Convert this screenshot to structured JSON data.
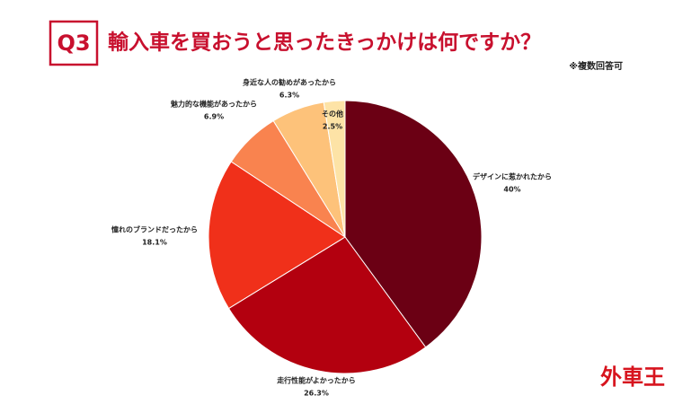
{
  "chart_data": {
    "type": "pie",
    "badge": "Q3",
    "title": "輸入車を買おうと思ったきっかけは何ですか？",
    "note": "※複数回答可",
    "logo": "外車王",
    "categories": [
      "デザインに惹かれたから",
      "走行性能がよかったから",
      "憧れのブランドだったから",
      "魅力的な機能があったから",
      "身近な人の勧めがあったから",
      "その他"
    ],
    "values": [
      40,
      26.3,
      18.1,
      6.9,
      6.3,
      2.5
    ],
    "value_labels": [
      "40%",
      "26.3%",
      "18.1%",
      "6.9%",
      "6.3%",
      "2.5%"
    ],
    "colors": [
      "#6b0014",
      "#b3000f",
      "#f0301a",
      "#f9834f",
      "#fdc27a",
      "#fde3a6"
    ]
  }
}
